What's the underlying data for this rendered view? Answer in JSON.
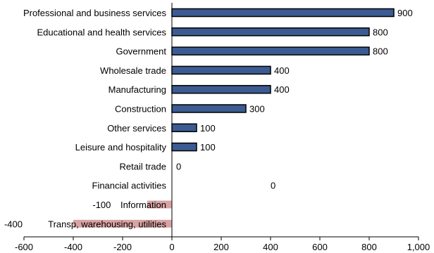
{
  "chart_data": {
    "type": "bar",
    "orientation": "horizontal",
    "title": "",
    "xlabel": "",
    "ylabel": "",
    "xlim": [
      -600,
      1000
    ],
    "xticks": [
      -600,
      -400,
      -200,
      0,
      200,
      400,
      600,
      800,
      1000
    ],
    "xtick_labels": [
      "-600",
      "-400",
      "-200",
      "0",
      "200",
      "400",
      "600",
      "800",
      "1,000"
    ],
    "grid": false,
    "legend": "none",
    "categories": [
      "Professional and business services",
      "Educational and health services",
      "Government",
      "Wholesale trade",
      "Manufacturing",
      "Construction",
      "Other services",
      "Leisure and hospitality",
      "Retail trade",
      "Financial activities",
      "Information",
      "Transp, warehousing, utilities"
    ],
    "values": [
      900,
      800,
      800,
      400,
      400,
      300,
      100,
      100,
      0,
      0,
      -100,
      -400
    ],
    "value_labels": [
      "900",
      "800",
      "800",
      "400",
      "400",
      "300",
      "100",
      "100",
      "0",
      "0",
      "-100",
      "-400"
    ],
    "colors": {
      "positive": "#3b5b92",
      "negative": "#d9a3a3",
      "border": "#000000"
    }
  }
}
